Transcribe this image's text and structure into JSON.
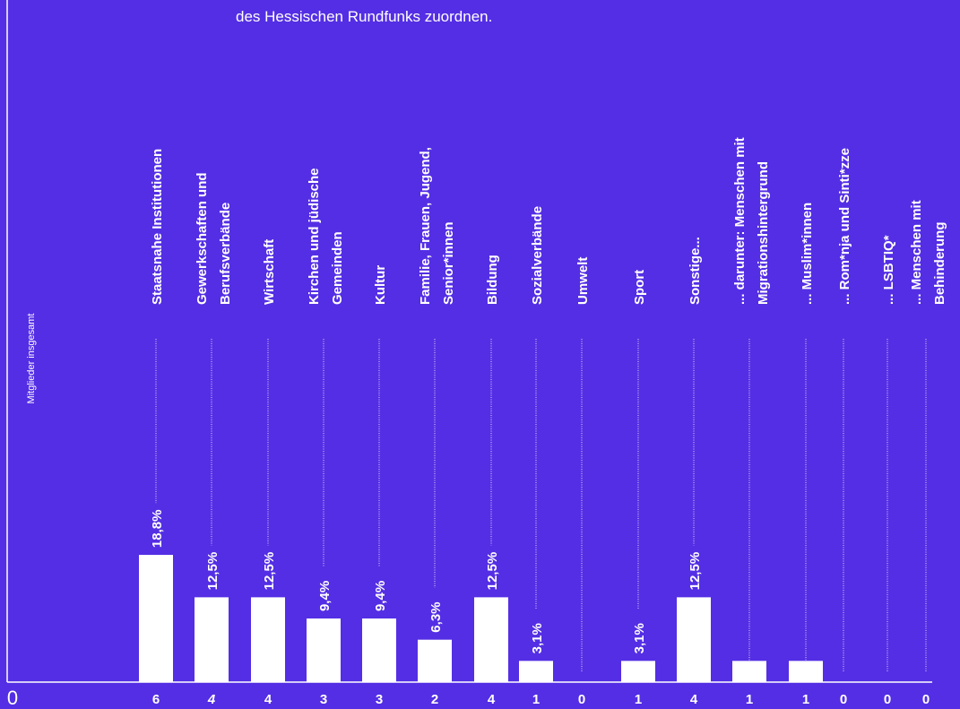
{
  "chart_data": {
    "type": "bar",
    "subtitle": "des Hessischen Rundfunks zuordnen.",
    "y_label": "Mitglieder insgesamt",
    "categories": [
      [
        "Staatsnahe Institutionen"
      ],
      [
        "Gewerkschaften und",
        "Berufsverbände"
      ],
      [
        "Wirtschaft"
      ],
      [
        "Kirchen und jüdische",
        "Gemeinden"
      ],
      [
        "Kultur"
      ],
      [
        "Familie, Frauen, Jugend,",
        "Senior*innen"
      ],
      [
        "Bildung"
      ],
      [
        "Sozialverbände"
      ],
      [
        "Umwelt"
      ],
      [
        "Sport"
      ],
      [
        "Sonstige..."
      ],
      [
        "... darunter: Menschen mit",
        "Migrationshintergrund"
      ],
      [
        "... Muslim*innen"
      ],
      [
        "... Rom*nja und Sinti*zze"
      ],
      [
        "... LSBTIQ*"
      ],
      [
        "... Menschen mit",
        "Behinderung"
      ]
    ],
    "values": [
      6,
      4,
      4,
      3,
      3,
      2,
      4,
      1,
      0,
      1,
      4,
      1,
      1,
      0,
      0,
      0
    ],
    "shares": [
      18.8,
      12.5,
      12.5,
      9.4,
      9.4,
      6.3,
      12.5,
      3.1,
      null,
      3.1,
      12.5,
      null,
      null,
      null,
      null,
      null
    ],
    "share_labels": [
      "18,8%",
      "12,5%",
      "12,5%",
      "9,4%",
      "9,4%",
      "6,3%",
      "12,5%",
      "3,1%",
      null,
      "3,1%",
      "12,5%",
      null,
      null,
      null,
      null,
      null
    ],
    "color": "#ffffff",
    "ylim": [
      0,
      32
    ],
    "yticks": [
      0
    ]
  }
}
